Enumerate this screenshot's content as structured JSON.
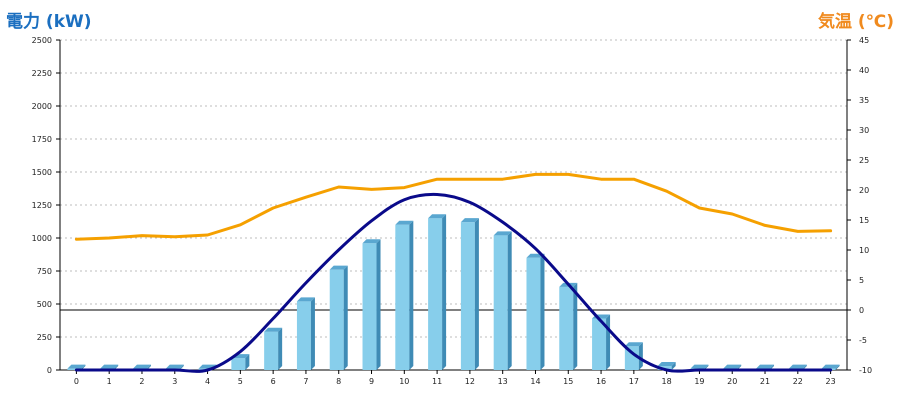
{
  "chart_data": {
    "type": "bar",
    "title": "",
    "ylabel": "電力 (kW)",
    "y2label": "気温 (℃)",
    "categories": [
      "0",
      "1",
      "2",
      "3",
      "4",
      "5",
      "6",
      "7",
      "8",
      "9",
      "10",
      "11",
      "12",
      "13",
      "14",
      "15",
      "16",
      "17",
      "18",
      "19",
      "20",
      "21",
      "22",
      "23"
    ],
    "ylim": [
      0,
      2500
    ],
    "y_ticks": [
      0,
      250,
      500,
      750,
      1000,
      1250,
      1500,
      1750,
      2000,
      2250,
      2500
    ],
    "y2lim": [
      -10,
      45
    ],
    "y2_ticks": [
      -10,
      -5,
      0,
      5,
      10,
      15,
      20,
      25,
      30,
      35,
      40,
      45
    ],
    "grid": true,
    "series": [
      {
        "kind": "bar",
        "axis": "left",
        "color": "#87ceeb",
        "values": [
          10,
          10,
          10,
          10,
          10,
          90,
          290,
          520,
          760,
          960,
          1100,
          1150,
          1120,
          1020,
          850,
          630,
          390,
          180,
          30,
          10,
          10,
          10,
          10,
          10
        ]
      },
      {
        "kind": "line",
        "axis": "left",
        "color": "#0a0a8a",
        "values": [
          0,
          0,
          0,
          0,
          0,
          140,
          390,
          660,
          910,
          1130,
          1290,
          1330,
          1270,
          1120,
          920,
          650,
          370,
          120,
          0,
          0,
          0,
          0,
          0,
          0
        ]
      },
      {
        "kind": "line",
        "axis": "right",
        "color": "#f5a000",
        "values": [
          11.8,
          12.0,
          12.4,
          12.2,
          12.5,
          14.2,
          17.0,
          18.8,
          20.5,
          20.1,
          20.4,
          21.8,
          21.8,
          21.8,
          22.6,
          22.6,
          21.8,
          21.8,
          19.8,
          17.0,
          16.0,
          14.1,
          13.1,
          13.2
        ]
      }
    ]
  }
}
